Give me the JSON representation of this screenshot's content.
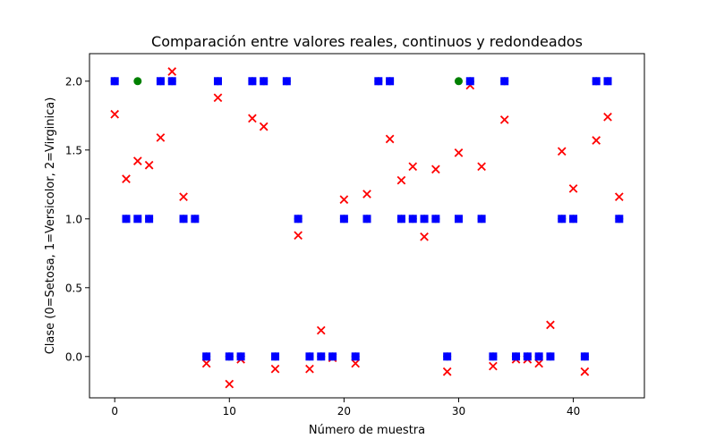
{
  "chart_data": {
    "type": "scatter",
    "title": "Comparación entre valores reales, continuos y redondeados",
    "xlabel": "Número de muestra",
    "ylabel": "Clase (0=Setosa, 1=Versicolor, 2=Virginica)",
    "xlim": [
      -2.2,
      46.2
    ],
    "ylim": [
      -0.3,
      2.2
    ],
    "xticks": [
      0,
      10,
      20,
      30,
      40
    ],
    "yticks": [
      0.0,
      0.5,
      1.0,
      1.5,
      2.0
    ],
    "ytick_labels": [
      "0.0",
      "0.5",
      "1.0",
      "1.5",
      "2.0"
    ],
    "grid": false,
    "legend": "none",
    "x": [
      0,
      1,
      2,
      3,
      4,
      5,
      6,
      7,
      8,
      9,
      10,
      11,
      12,
      13,
      14,
      15,
      16,
      17,
      18,
      19,
      20,
      21,
      22,
      23,
      24,
      25,
      26,
      27,
      28,
      29,
      30,
      31,
      32,
      33,
      34,
      35,
      36,
      37,
      38,
      39,
      40,
      41,
      42,
      43,
      44
    ],
    "series": [
      {
        "marker": "circle",
        "color": "#008000",
        "values": [
          2,
          1,
          2,
          1,
          2,
          2,
          1,
          1,
          0,
          2,
          0,
          0,
          2,
          2,
          0,
          2,
          1,
          0,
          0,
          0,
          1,
          0,
          1,
          2,
          2,
          1,
          1,
          1,
          1,
          0,
          2,
          2,
          1,
          0,
          2,
          0,
          0,
          0,
          0,
          1,
          1,
          0,
          2,
          2,
          1
        ]
      },
      {
        "marker": "x",
        "color": "#ff0000",
        "values": [
          1.76,
          1.29,
          1.42,
          1.39,
          1.59,
          2.07,
          1.16,
          null,
          -0.05,
          1.88,
          -0.2,
          -0.02,
          1.73,
          1.67,
          -0.09,
          null,
          0.88,
          -0.09,
          0.19,
          -0.01,
          1.14,
          -0.05,
          1.18,
          null,
          1.58,
          1.28,
          1.38,
          0.87,
          1.36,
          -0.11,
          1.48,
          1.97,
          1.38,
          -0.07,
          1.72,
          -0.02,
          -0.02,
          -0.05,
          0.23,
          1.49,
          1.22,
          -0.11,
          1.57,
          1.74,
          1.16
        ]
      },
      {
        "marker": "square",
        "color": "#0000ff",
        "values": [
          2,
          1,
          1,
          1,
          2,
          2,
          1,
          1,
          0,
          2,
          0,
          0,
          2,
          2,
          0,
          2,
          1,
          0,
          0,
          0,
          1,
          0,
          1,
          2,
          2,
          1,
          1,
          1,
          1,
          0,
          1,
          2,
          1,
          0,
          2,
          0,
          0,
          0,
          0,
          1,
          1,
          0,
          2,
          2,
          1
        ]
      }
    ]
  }
}
